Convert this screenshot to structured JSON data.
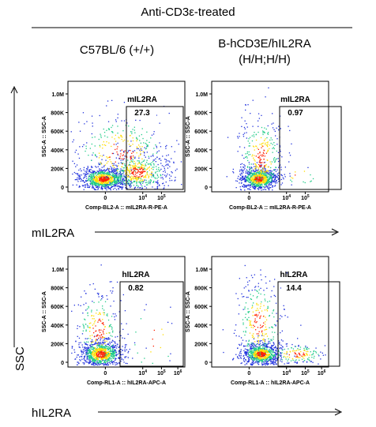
{
  "header": {
    "treatment_title": "Anti-CD3ε-treated",
    "column_left": "C57BL/6 (+/+)",
    "column_right_line1": "B-hCD3E/hIL2RA",
    "column_right_line2": "(H/H;H/H)"
  },
  "axis_labels": {
    "row1_marker": "mIL2RA",
    "row2_marker": "hIL2RA",
    "y_marker": "SSC"
  },
  "colors": {
    "density_low": "#2233dd",
    "density_mid": "#22cc88",
    "density_high": "#ffdd00",
    "density_peak": "#ff2200",
    "gate_line": "#000000"
  },
  "chart_data": [
    {
      "type": "scatter",
      "panel": "row1-left",
      "xlabel": "Comp-BL2-A :: mIL2RA-R-PE-A",
      "ylabel": "SSC-A :: SSC-A",
      "x_ticks": [
        "0",
        "10^4",
        "10^5"
      ],
      "y_ticks": [
        "0",
        "200K",
        "400K",
        "600K",
        "800K",
        "1.0M"
      ],
      "ylim": [
        0,
        1050000
      ],
      "gate": {
        "name": "mIL2RA",
        "percent": "27.3"
      }
    },
    {
      "type": "scatter",
      "panel": "row1-right",
      "xlabel": "Comp-BL2-A :: mIL2RA-R-PE-A",
      "ylabel": "SSC-A :: SSC-A",
      "x_ticks": [
        "0",
        "10^4",
        "10^5"
      ],
      "y_ticks": [
        "0",
        "200K",
        "400K",
        "600K",
        "800K",
        "1.0M"
      ],
      "ylim": [
        0,
        1050000
      ],
      "gate": {
        "name": "mIL2RA",
        "percent": "0.97"
      }
    },
    {
      "type": "scatter",
      "panel": "row2-left",
      "xlabel": "Comp-RL1-A :: hIL2RA-APC-A",
      "ylabel": "SSC-A :: SSC-A",
      "x_ticks": [
        "0",
        "10^4",
        "10^5",
        "10^6"
      ],
      "y_ticks": [
        "0",
        "200K",
        "400K",
        "600K",
        "800K",
        "1.0M"
      ],
      "ylim": [
        0,
        1050000
      ],
      "gate": {
        "name": "hIL2RA",
        "percent": "0.82"
      }
    },
    {
      "type": "scatter",
      "panel": "row2-right",
      "xlabel": "Comp-RL1-A :: hIL2RA-APC-A",
      "ylabel": "SSC-A :: SSC-A",
      "x_ticks": [
        "0",
        "10^4",
        "10^5",
        "10^6"
      ],
      "y_ticks": [
        "0",
        "200K",
        "400K",
        "600K",
        "800K",
        "1.0M"
      ],
      "ylim": [
        0,
        1050000
      ],
      "gate": {
        "name": "hIL2RA",
        "percent": "14.4"
      }
    }
  ]
}
